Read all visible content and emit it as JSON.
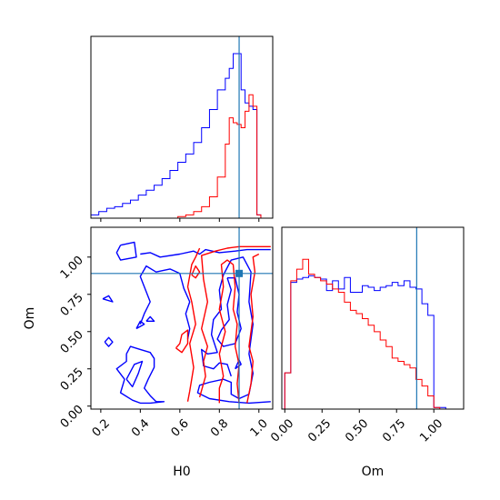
{
  "colors": {
    "series_a": "#0000ff",
    "series_b": "#ff0000",
    "truth": "#1f77b4",
    "frame": "#000000",
    "background": "#ffffff"
  },
  "chart_data": [
    {
      "panel": "H0 marginal (top-left)",
      "type": "histogram",
      "x_range": [
        0.15,
        1.07
      ],
      "show_x_tick_labels": false,
      "show_y_ticks": false,
      "truth_x": 0.9,
      "bin_edges": [
        0.15,
        0.19,
        0.23,
        0.27,
        0.31,
        0.35,
        0.39,
        0.43,
        0.47,
        0.51,
        0.55,
        0.59,
        0.63,
        0.67,
        0.71,
        0.75,
        0.79,
        0.83,
        0.85,
        0.87,
        0.89,
        0.91,
        0.93,
        0.95,
        0.97,
        0.99,
        1.01,
        1.07
      ],
      "series": [
        {
          "color": "blue",
          "counts": [
            0.02,
            0.04,
            0.06,
            0.07,
            0.09,
            0.11,
            0.14,
            0.17,
            0.2,
            0.24,
            0.29,
            0.34,
            0.39,
            0.46,
            0.55,
            0.66,
            0.78,
            0.85,
            0.91,
            1.0,
            1.0,
            0.78,
            0.7,
            0.68,
            0.66,
            0.02,
            0.0
          ]
        },
        {
          "color": "red",
          "counts": [
            0,
            0,
            0,
            0,
            0,
            0,
            0,
            0,
            0,
            0,
            0,
            0.01,
            0.02,
            0.04,
            0.07,
            0.13,
            0.25,
            0.45,
            0.61,
            0.58,
            0.57,
            0.55,
            0.65,
            0.75,
            0.68,
            0.02,
            0.0
          ]
        }
      ]
    },
    {
      "panel": "H0 vs Om contours (bottom-left)",
      "type": "contour",
      "xlabel": "H0",
      "ylabel": "Om",
      "xlim": [
        0.15,
        1.07
      ],
      "ylim": [
        -0.02,
        1.2
      ],
      "xticks": [
        "0.2",
        "0.4",
        "0.6",
        "0.8",
        "1.0"
      ],
      "yticks": [
        "0.00",
        "0.25",
        "0.50",
        "0.75",
        "1.00"
      ],
      "truth": {
        "x": 0.9,
        "y": 0.89
      },
      "series": [
        {
          "color": "blue",
          "contours": [
            [
              [
                0.3,
                1.08
              ],
              [
                0.37,
                1.1
              ],
              [
                0.38,
                1.0
              ],
              [
                0.3,
                0.98
              ],
              [
                0.28,
                1.03
              ],
              [
                0.3,
                1.08
              ]
            ],
            [
              [
                0.4,
                1.02
              ],
              [
                0.45,
                1.03
              ],
              [
                0.5,
                1.0
              ],
              [
                0.6,
                1.02
              ],
              [
                0.67,
                1.04
              ],
              [
                0.7,
                1.02
              ],
              [
                0.73,
                1.05
              ],
              [
                0.8,
                1.03
              ],
              [
                0.88,
                1.04
              ],
              [
                0.94,
                1.05
              ],
              [
                1.06,
                1.05
              ]
            ],
            [
              [
                1.06,
                0.03
              ],
              [
                0.95,
                0.02
              ],
              [
                0.85,
                0.03
              ],
              [
                0.75,
                0.05
              ],
              [
                0.69,
                0.09
              ],
              [
                0.7,
                0.14
              ],
              [
                0.75,
                0.16
              ],
              [
                0.82,
                0.18
              ],
              [
                0.86,
                0.16
              ],
              [
                0.86,
                0.08
              ],
              [
                0.9,
                0.05
              ],
              [
                0.95,
                0.08
              ],
              [
                0.97,
                0.22
              ],
              [
                0.95,
                0.35
              ],
              [
                0.97,
                0.55
              ],
              [
                0.95,
                0.7
              ],
              [
                0.96,
                0.9
              ],
              [
                0.92,
                1.0
              ],
              [
                0.86,
                0.98
              ],
              [
                0.82,
                0.88
              ],
              [
                0.8,
                0.78
              ],
              [
                0.81,
                0.65
              ],
              [
                0.77,
                0.58
              ],
              [
                0.76,
                0.48
              ],
              [
                0.79,
                0.36
              ],
              [
                0.74,
                0.35
              ],
              [
                0.71,
                0.38
              ],
              [
                0.72,
                0.27
              ],
              [
                0.77,
                0.25
              ],
              [
                0.8,
                0.29
              ],
              [
                0.84,
                0.28
              ],
              [
                0.86,
                0.2
              ]
            ],
            [
              [
                0.84,
                0.86
              ],
              [
                0.86,
                0.78
              ],
              [
                0.84,
                0.68
              ],
              [
                0.85,
                0.58
              ],
              [
                0.81,
                0.51
              ],
              [
                0.79,
                0.45
              ],
              [
                0.82,
                0.4
              ],
              [
                0.88,
                0.42
              ],
              [
                0.91,
                0.52
              ],
              [
                0.89,
                0.63
              ],
              [
                0.9,
                0.75
              ],
              [
                0.88,
                0.86
              ],
              [
                0.84,
                0.86
              ]
            ],
            [
              [
                0.88,
                0.25
              ],
              [
                0.9,
                0.31
              ],
              [
                0.91,
                0.28
              ],
              [
                0.88,
                0.25
              ]
            ],
            [
              [
                0.4,
                0.55
              ],
              [
                0.42,
                0.62
              ],
              [
                0.45,
                0.7
              ],
              [
                0.4,
                0.87
              ],
              [
                0.43,
                0.94
              ],
              [
                0.48,
                0.9
              ],
              [
                0.55,
                0.92
              ],
              [
                0.6,
                0.89
              ],
              [
                0.62,
                0.79
              ],
              [
                0.65,
                0.7
              ],
              [
                0.63,
                0.62
              ],
              [
                0.65,
                0.52
              ],
              [
                0.64,
                0.45
              ]
            ],
            [
              [
                0.33,
                0.35
              ],
              [
                0.35,
                0.4
              ],
              [
                0.4,
                0.38
              ],
              [
                0.45,
                0.36
              ],
              [
                0.47,
                0.32
              ],
              [
                0.47,
                0.26
              ],
              [
                0.44,
                0.18
              ],
              [
                0.42,
                0.12
              ],
              [
                0.45,
                0.07
              ],
              [
                0.48,
                0.03
              ],
              [
                0.52,
                0.03
              ],
              [
                0.45,
                0.02
              ],
              [
                0.4,
                0.02
              ],
              [
                0.36,
                0.04
              ],
              [
                0.3,
                0.09
              ],
              [
                0.32,
                0.18
              ],
              [
                0.28,
                0.25
              ],
              [
                0.33,
                0.3
              ],
              [
                0.33,
                0.35
              ]
            ],
            [
              [
                0.33,
                0.18
              ],
              [
                0.37,
                0.28
              ],
              [
                0.41,
                0.3
              ],
              [
                0.39,
                0.22
              ],
              [
                0.36,
                0.13
              ],
              [
                0.33,
                0.18
              ]
            ],
            [
              [
                0.38,
                0.52
              ],
              [
                0.4,
                0.57
              ],
              [
                0.42,
                0.55
              ],
              [
                0.38,
                0.52
              ]
            ],
            [
              [
                0.43,
                0.57
              ],
              [
                0.45,
                0.6
              ],
              [
                0.47,
                0.57
              ],
              [
                0.43,
                0.57
              ]
            ],
            [
              [
                0.21,
                0.72
              ],
              [
                0.24,
                0.74
              ],
              [
                0.26,
                0.7
              ],
              [
                0.21,
                0.72
              ]
            ],
            [
              [
                0.22,
                0.43
              ],
              [
                0.24,
                0.46
              ],
              [
                0.26,
                0.43
              ],
              [
                0.24,
                0.4
              ],
              [
                0.22,
                0.43
              ]
            ]
          ]
        },
        {
          "color": "red",
          "contours": [
            [
              [
                0.7,
                0.06
              ],
              [
                0.73,
                0.2
              ],
              [
                0.72,
                0.3
              ],
              [
                0.74,
                0.4
              ],
              [
                0.71,
                0.52
              ],
              [
                0.74,
                0.7
              ],
              [
                0.72,
                0.85
              ],
              [
                0.71,
                1.01
              ],
              [
                0.78,
                1.04
              ],
              [
                0.84,
                1.06
              ],
              [
                0.9,
                1.07
              ],
              [
                0.96,
                1.07
              ],
              [
                1.06,
                1.07
              ]
            ],
            [
              [
                0.64,
                0.03
              ],
              [
                0.65,
                0.1
              ],
              [
                0.67,
                0.26
              ],
              [
                0.65,
                0.42
              ],
              [
                0.68,
                0.55
              ],
              [
                0.66,
                0.7
              ],
              [
                0.64,
                0.8
              ],
              [
                0.66,
                0.95
              ],
              [
                0.68,
                1.0
              ],
              [
                0.7,
                1.06
              ]
            ],
            [
              [
                0.8,
                0.02
              ],
              [
                0.8,
                0.12
              ],
              [
                0.82,
                0.2
              ],
              [
                0.8,
                0.35
              ],
              [
                0.83,
                0.5
              ],
              [
                0.8,
                0.65
              ],
              [
                0.82,
                0.8
              ],
              [
                0.81,
                0.95
              ],
              [
                0.84,
                0.98
              ],
              [
                0.87,
                0.95
              ],
              [
                0.88,
                0.8
              ],
              [
                0.87,
                0.65
              ],
              [
                0.89,
                0.55
              ],
              [
                0.88,
                0.4
              ],
              [
                0.9,
                0.28
              ],
              [
                0.89,
                0.15
              ],
              [
                0.9,
                0.02
              ]
            ],
            [
              [
                0.94,
                0.02
              ],
              [
                0.96,
                0.15
              ],
              [
                0.97,
                0.3
              ],
              [
                0.95,
                0.4
              ],
              [
                0.97,
                0.6
              ],
              [
                0.96,
                0.75
              ],
              [
                0.98,
                0.9
              ],
              [
                0.97,
                1.0
              ],
              [
                1.0,
                1.02
              ]
            ],
            [
              [
                0.58,
                0.39
              ],
              [
                0.6,
                0.42
              ],
              [
                0.61,
                0.48
              ],
              [
                0.64,
                0.51
              ],
              [
                0.64,
                0.42
              ],
              [
                0.61,
                0.36
              ],
              [
                0.58,
                0.39
              ]
            ],
            [
              [
                0.66,
                0.88
              ],
              [
                0.68,
                0.94
              ],
              [
                0.7,
                0.9
              ],
              [
                0.68,
                0.86
              ],
              [
                0.66,
                0.88
              ]
            ]
          ]
        }
      ]
    },
    {
      "panel": "Om marginal (bottom-right)",
      "type": "histogram",
      "xlabel": "Om",
      "x_range": [
        -0.02,
        1.2
      ],
      "xticks": [
        "0.00",
        "0.25",
        "0.50",
        "0.75",
        "1.00"
      ],
      "show_y_ticks": false,
      "truth_x": 0.885,
      "bin_edges": [
        -0.02,
        0.0,
        0.04,
        0.08,
        0.12,
        0.16,
        0.2,
        0.24,
        0.28,
        0.32,
        0.36,
        0.4,
        0.44,
        0.48,
        0.52,
        0.56,
        0.6,
        0.64,
        0.68,
        0.72,
        0.76,
        0.8,
        0.84,
        0.88,
        0.92,
        0.96,
        1.0,
        1.04,
        1.08,
        1.12,
        1.2
      ],
      "series": [
        {
          "color": "blue",
          "counts": [
            0.0,
            0.22,
            0.77,
            0.79,
            0.8,
            0.81,
            0.8,
            0.79,
            0.72,
            0.78,
            0.73,
            0.8,
            0.71,
            0.71,
            0.75,
            0.74,
            0.72,
            0.74,
            0.75,
            0.77,
            0.75,
            0.78,
            0.74,
            0.73,
            0.64,
            0.57,
            0.01,
            0.01,
            0.0,
            0.0
          ]
        },
        {
          "color": "red",
          "counts": [
            0.0,
            0.22,
            0.78,
            0.85,
            0.91,
            0.82,
            0.8,
            0.78,
            0.76,
            0.73,
            0.71,
            0.65,
            0.6,
            0.58,
            0.55,
            0.51,
            0.47,
            0.42,
            0.38,
            0.31,
            0.29,
            0.27,
            0.25,
            0.18,
            0.14,
            0.08,
            0.01,
            0.0,
            0.0,
            0.0
          ]
        }
      ]
    }
  ]
}
